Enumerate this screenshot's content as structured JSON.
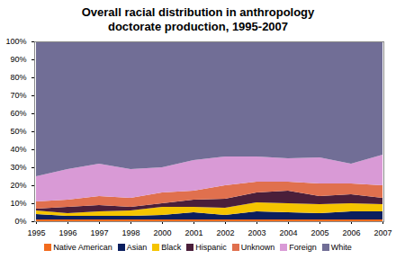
{
  "chart_data": {
    "type": "area",
    "stacked": true,
    "title": "Overall racial distribution in anthropology doctorate production, 1995-2007",
    "categories": [
      "1995",
      "1996",
      "1997",
      "1998",
      "2000",
      "2001",
      "2002",
      "2003",
      "2004",
      "2005",
      "2006",
      "2007"
    ],
    "series": [
      {
        "name": "Native American",
        "color": "#f26b1d",
        "values": [
          1,
          1,
          1,
          1,
          1,
          1,
          1,
          1,
          1,
          1,
          1,
          1
        ]
      },
      {
        "name": "Asian",
        "color": "#0b1f5e",
        "values": [
          3,
          2,
          2,
          2,
          2.5,
          4,
          2.5,
          4.5,
          4,
          3.5,
          4.5,
          4.5
        ]
      },
      {
        "name": "Black",
        "color": "#f5c400",
        "values": [
          2,
          1.5,
          2.5,
          3,
          4.5,
          3,
          4,
          5,
          5,
          5,
          4.5,
          4
        ]
      },
      {
        "name": "Hispanic",
        "color": "#4a1f3a",
        "values": [
          1,
          3.5,
          3.5,
          2,
          2,
          4,
          5,
          5.5,
          7,
          4.5,
          5,
          3.5
        ]
      },
      {
        "name": "Unknown",
        "color": "#e0704e",
        "values": [
          4,
          4,
          5,
          5,
          6,
          5,
          7.5,
          6,
          5,
          7,
          6,
          7
        ]
      },
      {
        "name": "Foreign",
        "color": "#d99ad6",
        "values": [
          14,
          17,
          18,
          16,
          14,
          17,
          16,
          14,
          13,
          14.5,
          11,
          17
        ]
      },
      {
        "name": "White",
        "color": "#716e96",
        "values": [
          75,
          71,
          68,
          71,
          70,
          66,
          64,
          64,
          65,
          64.5,
          68,
          63
        ]
      }
    ],
    "ylim": [
      0,
      100
    ],
    "yticks": [
      {
        "value": 0,
        "label": "0%"
      },
      {
        "value": 10,
        "label": "10%"
      },
      {
        "value": 20,
        "label": "20%"
      },
      {
        "value": 30,
        "label": "30%"
      },
      {
        "value": 40,
        "label": "40%"
      },
      {
        "value": 50,
        "label": "50%"
      },
      {
        "value": 60,
        "label": "60%"
      },
      {
        "value": 70,
        "label": "70%"
      },
      {
        "value": 80,
        "label": "80%"
      },
      {
        "value": 90,
        "label": "90%"
      },
      {
        "value": 100,
        "label": "100%"
      }
    ],
    "legend": "bottom",
    "grid": false
  }
}
